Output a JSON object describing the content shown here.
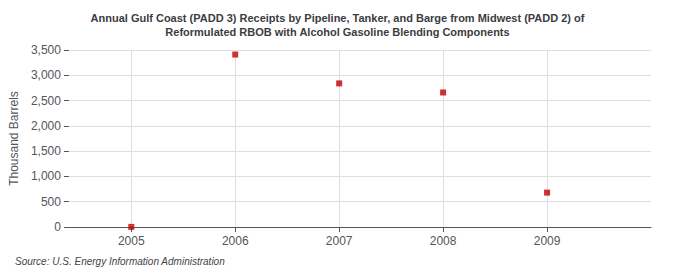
{
  "chart_data": {
    "type": "scatter",
    "title": "Annual Gulf Coast (PADD 3) Receipts by Pipeline, Tanker, and Barge from Midwest (PADD 2) of\nReformulated RBOB with Alcohol Gasoline Blending Components",
    "ylabel": "Thousand Barrels",
    "annotation": "Source: U.S. Energy Information Administration",
    "x": [
      2005,
      2006,
      2007,
      2008,
      2009
    ],
    "values": [
      2,
      3410,
      2840,
      2660,
      680
    ],
    "color": "#c00000",
    "marker": "square",
    "xlim": [
      2004.4,
      2010.0
    ],
    "xticks": [
      2005,
      2006,
      2007,
      2008,
      2009
    ],
    "ylim": [
      0,
      3500
    ],
    "yticks": [
      0,
      500,
      {
        "value": 1000,
        "label": "1,000"
      },
      {
        "value": 1500,
        "label": "1,500"
      },
      {
        "value": 2000,
        "label": "2,000"
      },
      {
        "value": 2500,
        "label": "2,500"
      },
      {
        "value": 3000,
        "label": "3,000"
      },
      {
        "value": 3500,
        "label": "3,500"
      }
    ],
    "grid": true
  }
}
